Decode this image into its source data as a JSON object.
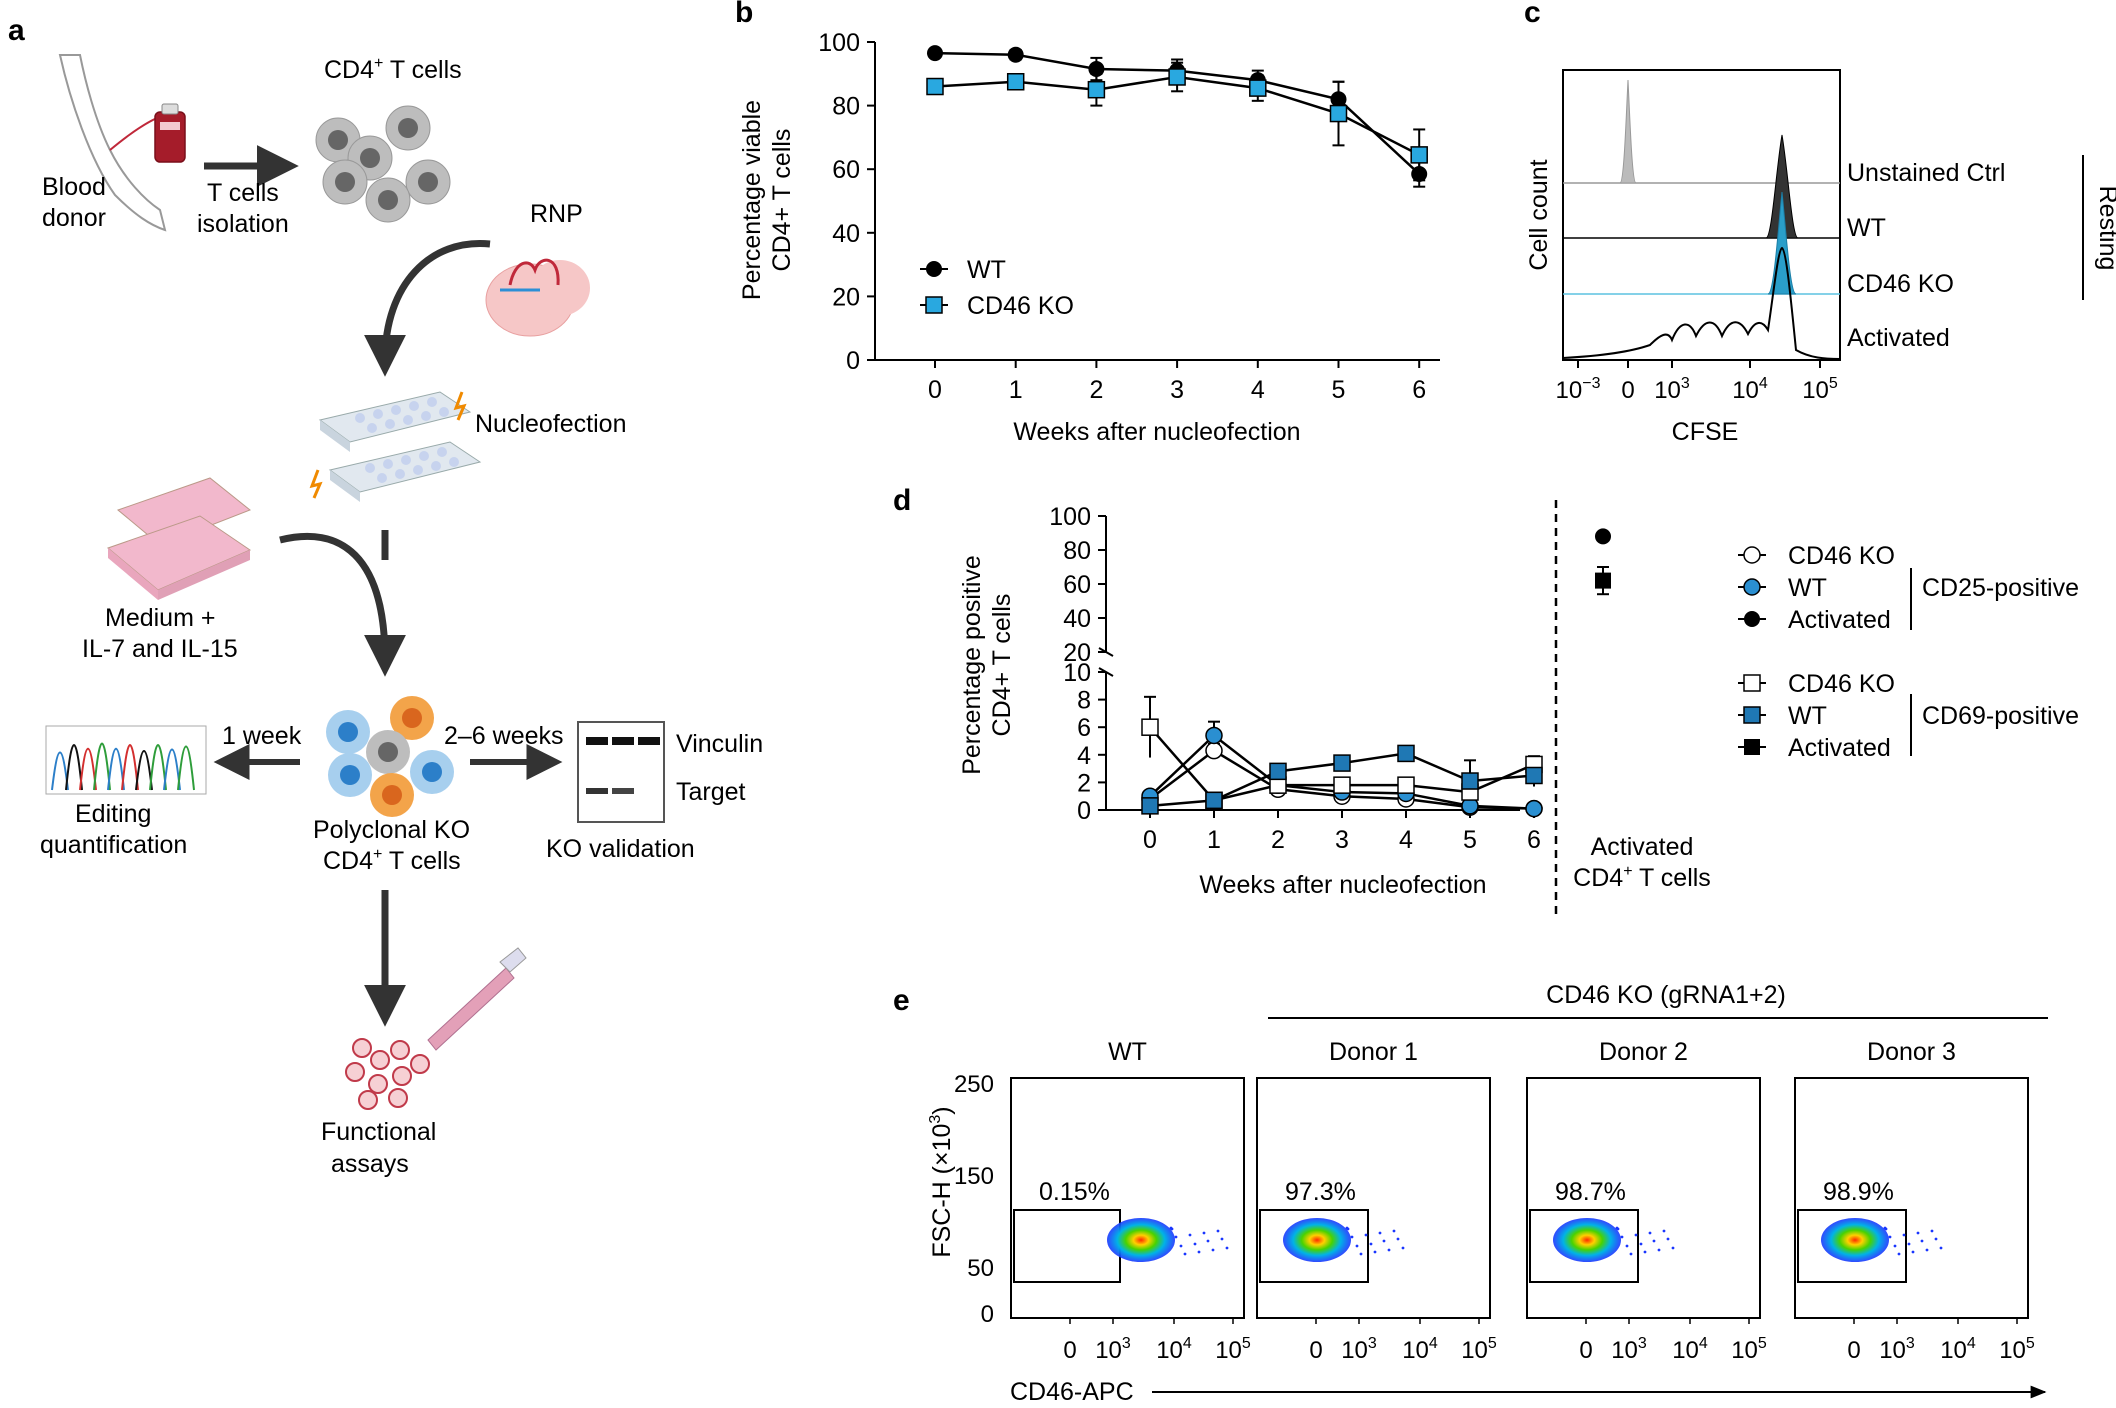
{
  "panel_letters": {
    "a": "a",
    "b": "b",
    "c": "c",
    "d": "d",
    "e": "e"
  },
  "panel_a": {
    "cd4_label": "CD4",
    "cd4_sup": "+",
    "cd4_suffix": " T cells",
    "blood_donor": [
      "Blood",
      "donor"
    ],
    "t_cells_isolation": [
      "T cells",
      "isolation"
    ],
    "rnp": "RNP",
    "nucleofection": "Nucleofection",
    "medium": [
      "Medium +",
      "IL-7 and IL-15"
    ],
    "one_week": "1 week",
    "two_six_weeks": "2–6 weeks",
    "vinculin": "Vinculin",
    "target": "Target",
    "editing_quantification": [
      "Editing",
      "quantification"
    ],
    "polyclonal_ko": "Polyclonal KO",
    "cd4_tcells_line": "CD4",
    "ko_validation": "KO validation",
    "functional_assays": [
      "Functional",
      "assays"
    ]
  },
  "chart_data": [
    {
      "id": "b",
      "type": "line",
      "title": "",
      "xlabel": "Weeks after nucleofection",
      "ylabel_lines": [
        "Percentage viable",
        "CD4+ T cells"
      ],
      "x": [
        0,
        1,
        2,
        3,
        4,
        5,
        6
      ],
      "x_tick_labels": [
        "0",
        "1",
        "2",
        "3",
        "4",
        "5",
        "6"
      ],
      "ylim": [
        0,
        100
      ],
      "y_ticks": [
        0,
        20,
        40,
        60,
        80,
        100
      ],
      "series": [
        {
          "name": "WT",
          "marker": "circle",
          "color": "#000000",
          "values": [
            96.5,
            96.0,
            91.5,
            91.0,
            88.0,
            82.0,
            58.5
          ],
          "err": [
            1.0,
            1.5,
            3.5,
            3.5,
            3.0,
            5.5,
            4.0
          ]
        },
        {
          "name": "CD46 KO",
          "marker": "square",
          "color": "#29a8e0",
          "values": [
            86.0,
            87.5,
            85.0,
            89.0,
            85.5,
            77.5,
            64.5
          ],
          "err": [
            1.5,
            1.5,
            5.0,
            4.5,
            4.0,
            10.0,
            8.0
          ]
        }
      ]
    },
    {
      "id": "c",
      "type": "histogram-stack",
      "xlabel": "CFSE",
      "ylabel": "Cell count",
      "x_tick_labels": [
        "10−3",
        "0",
        "103",
        "104",
        "105"
      ],
      "tracks": [
        "Unstained Ctrl",
        "WT",
        "CD46 KO",
        "Activated"
      ],
      "bracket_label": "Resting"
    },
    {
      "id": "d",
      "type": "line",
      "xlabel": "Weeks after nucleofection",
      "ylabel_lines": [
        "Percentage positive",
        "CD4+ T cells"
      ],
      "x": [
        0,
        1,
        2,
        3,
        4,
        5,
        6
      ],
      "x_tick_labels": [
        "0",
        "1",
        "2",
        "3",
        "4",
        "5",
        "6"
      ],
      "y_ticks_lower": [
        0,
        2,
        4,
        6,
        8,
        10
      ],
      "y_ticks_upper": [
        20,
        40,
        60,
        80,
        100
      ],
      "series": [
        {
          "name": "CD46 KO",
          "group": "CD25-positive",
          "marker": "circle-open",
          "values": [
            0.8,
            4.3,
            1.5,
            1.0,
            0.8,
            0.2,
            0.1
          ],
          "err": [
            0.3,
            0.5,
            0.3,
            0.3,
            0.3,
            0.1,
            0.1
          ]
        },
        {
          "name": "WT",
          "group": "CD25-positive",
          "marker": "circle-blue",
          "values": [
            1.0,
            5.4,
            1.8,
            1.3,
            1.2,
            0.3,
            0.1
          ],
          "err": [
            0.3,
            1.0,
            0.3,
            0.3,
            0.3,
            0.2,
            0.1
          ]
        },
        {
          "name": "CD46 KO",
          "group": "CD69-positive",
          "marker": "square-open",
          "values": [
            6.0,
            0.7,
            1.8,
            1.8,
            1.8,
            1.3,
            3.3
          ],
          "err": [
            2.2,
            0.3,
            0.5,
            0.5,
            0.4,
            0.4,
            0.6
          ]
        },
        {
          "name": "WT",
          "group": "CD69-positive",
          "marker": "square-blue",
          "values": [
            0.3,
            0.7,
            2.8,
            3.4,
            4.1,
            2.1,
            2.5
          ],
          "err": [
            0.2,
            0.3,
            0.3,
            0.3,
            0.4,
            1.5,
            0.8
          ]
        }
      ],
      "activated": [
        {
          "name": "Activated",
          "group": "CD25-positive",
          "marker": "circle-black",
          "value": 88,
          "err": 2
        },
        {
          "name": "Activated",
          "group": "CD69-positive",
          "marker": "square-black",
          "value": 62,
          "err": 8
        }
      ],
      "activated_label": [
        "Activated",
        "CD4+ T cells"
      ],
      "legend_groups": [
        {
          "label": "CD25-positive",
          "items": [
            "CD46 KO",
            "WT",
            "Activated"
          ]
        },
        {
          "label": "CD69-positive",
          "items": [
            "CD46 KO",
            "WT",
            "Activated"
          ]
        }
      ]
    },
    {
      "id": "e",
      "type": "flow-density",
      "ylabel": "FSC-H (×103)",
      "xlabel": "CD46-APC",
      "header": "CD46 KO (gRNA1+2)",
      "y_tick_labels": [
        "250",
        "150",
        "50",
        "0"
      ],
      "x_tick_labels": [
        "0",
        "103",
        "104",
        "105"
      ],
      "panels": [
        {
          "name": "WT",
          "gate_percent": "0.15%"
        },
        {
          "name": "Donor 1",
          "gate_percent": "97.3%"
        },
        {
          "name": "Donor 2",
          "gate_percent": "98.7%"
        },
        {
          "name": "Donor 3",
          "gate_percent": "98.9%"
        }
      ]
    }
  ]
}
